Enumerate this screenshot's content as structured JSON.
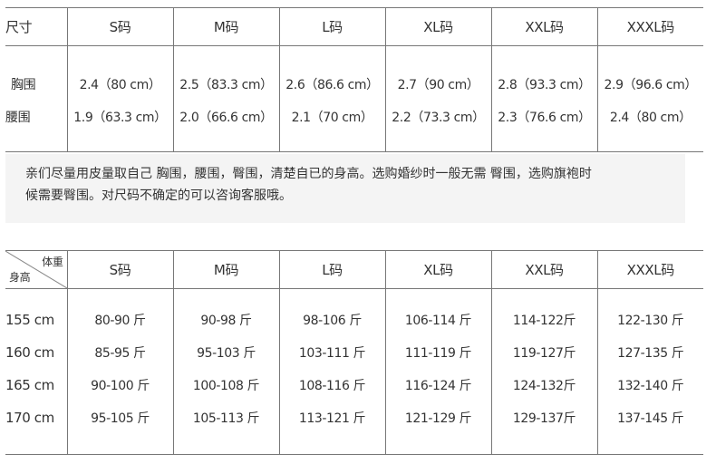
{
  "measure_table": {
    "corner": "尺寸",
    "sizes": [
      "S码",
      "M码",
      "L码",
      "XL码",
      "XXL码",
      "XXXL码"
    ],
    "rows": [
      {
        "label": "胸围",
        "values": [
          "2.4（80 cm）",
          "2.5（83.3 cm）",
          "2.6（86.6 cm）",
          "2.7（90 cm）",
          "2.8（93.3 cm）",
          "2.9（96.6 cm）"
        ]
      },
      {
        "label": "腰围",
        "values": [
          "1.9（63.3 cm）",
          "2.0（66.6 cm）",
          "2.1（70 cm）",
          "2.2（73.3 cm）",
          "2.3（76.6 cm）",
          "2.4（80 cm）"
        ]
      }
    ]
  },
  "note": {
    "line1": "亲们尽量用皮量取自己 胸围，腰围，臀围，清楚自已的身高。选购婚纱时一般无需 臀围，选购旗袍时",
    "line2": "候需要臀围。对尺码不确定的可以咨询客服哦。"
  },
  "weight_table": {
    "corner_weight": "体重",
    "corner_height": "身高",
    "sizes": [
      "S码",
      "M码",
      "L码",
      "XL码",
      "XXL码",
      "XXXL码"
    ],
    "rows": [
      {
        "label": "155 cm",
        "values": [
          "80-90 斤",
          "90-98 斤",
          "98-106 斤",
          "106-114 斤",
          "114-122斤",
          "122-130 斤"
        ]
      },
      {
        "label": "160 cm",
        "values": [
          "85-95 斤",
          "95-103 斤",
          "103-111 斤",
          "111-119 斤",
          "119-127斤",
          "127-135 斤"
        ]
      },
      {
        "label": "165 cm",
        "values": [
          "90-100 斤",
          "100-108 斤",
          "108-116 斤",
          "116-124 斤",
          "124-132斤",
          "132-140 斤"
        ]
      },
      {
        "label": "170 cm",
        "values": [
          "95-105 斤",
          "105-113 斤",
          "113-121 斤",
          "121-129 斤",
          "129-137斤",
          "137-145 斤"
        ]
      }
    ]
  }
}
